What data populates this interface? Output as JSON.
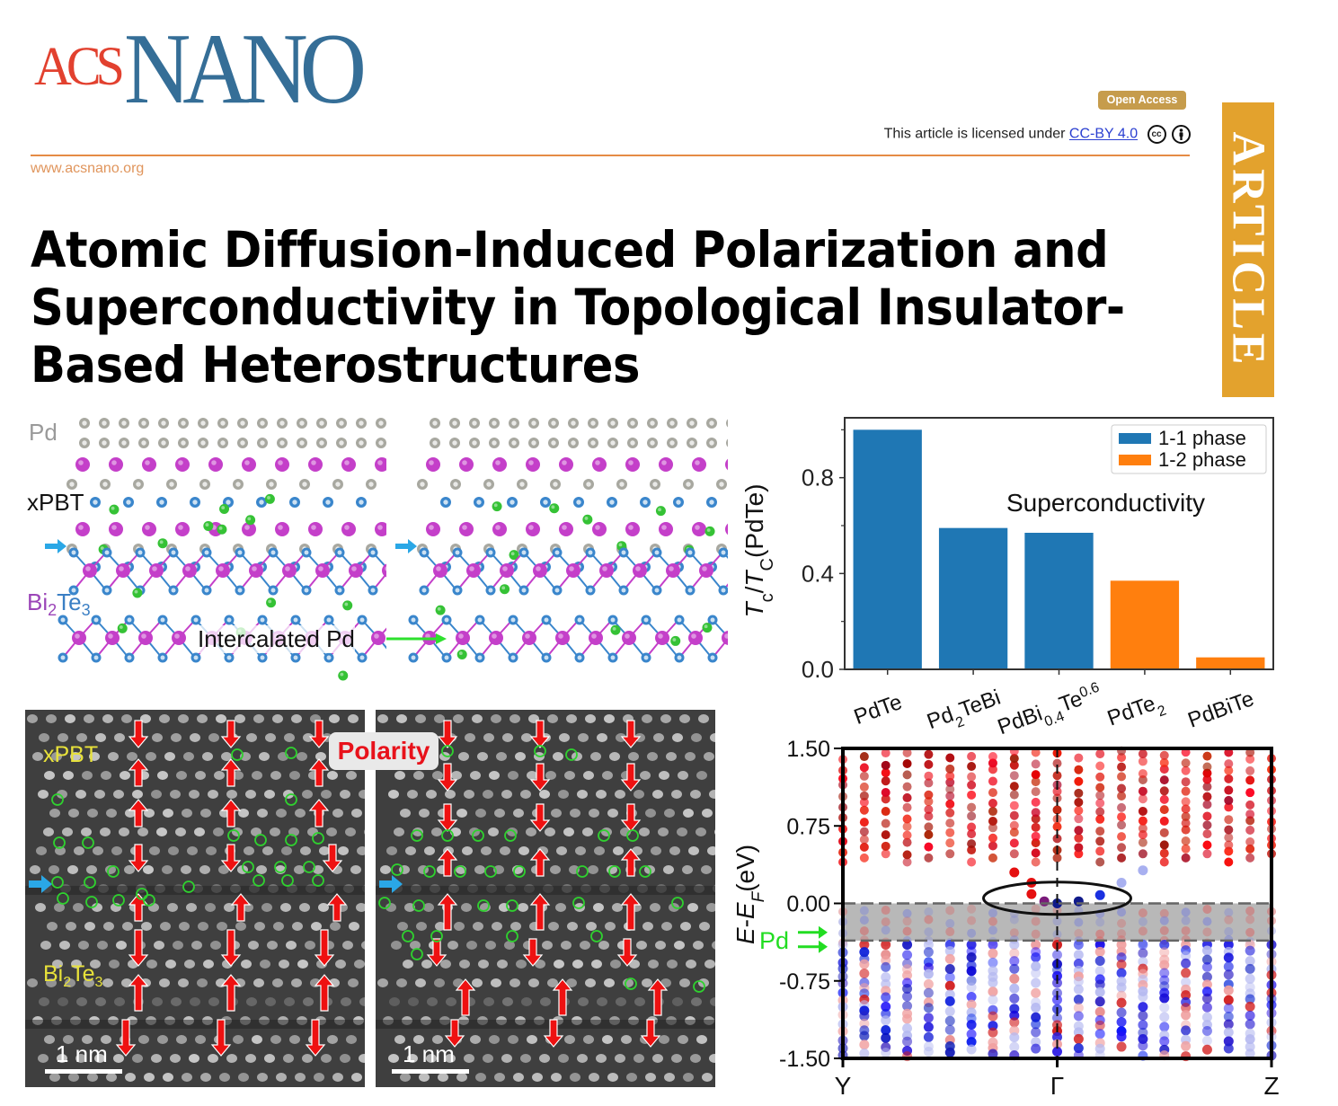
{
  "journal": {
    "logo_acs": "ACS",
    "logo_nano": "NANO",
    "website": "www.acsnano.org",
    "open_access_badge": "Open Access",
    "license_prefix": "This article is licensed under ",
    "license_link": "CC-BY 4.0",
    "icons": [
      "cc-icon",
      "by-person-icon"
    ],
    "section_tab": "ARTICLE",
    "colors": {
      "acs_red": "#e2412f",
      "nano_blue": "#356e97",
      "rule_orange": "#e58b45",
      "article_gold": "#e3a22d"
    }
  },
  "title_lines": [
    "Atomic Diffusion-Induced Polarization and",
    "Superconductivity in Topological Insulator-",
    "Based Heterostructures"
  ],
  "structure_panel": {
    "labels": {
      "pd": "Pd",
      "xpbt": "xPBT",
      "bi2te3_main": "Bi",
      "bi2te3_sub": "2",
      "bi2te3_te": "Te",
      "bi2te3_sub2": "3",
      "intercalated": "Intercalated Pd"
    },
    "atom_colors": {
      "pd": "#a8a8a0",
      "bi": "#c43fc9",
      "te": "#3a86cc",
      "intercalated_pd": "#35c235"
    }
  },
  "tem_panel": {
    "labels": {
      "xpbt": "xPBT",
      "bi": "Bi",
      "sub2": "2",
      "te": "Te",
      "sub3": "3"
    },
    "polarity_label": "Polarity",
    "scale_bar_left": "1 nm",
    "scale_bar_right": "1 nm"
  },
  "chart_data": [
    {
      "type": "bar",
      "title": "",
      "annotation": "Superconductivity",
      "categories": [
        "PdTe",
        "Pd2TeBi",
        "PdBi0.4Te0.6",
        "PdTe2",
        "PdBiTe"
      ],
      "category_labels": [
        {
          "base": "PdTe",
          "parts": [
            [
              "PdTe",
              ""
            ]
          ]
        },
        {
          "base": "Pd2TeBi",
          "parts": [
            [
              "Pd",
              ""
            ],
            [
              "2",
              "sub"
            ],
            [
              "TeBi",
              ""
            ]
          ]
        },
        {
          "base": "PdBi0.4Te0.6",
          "parts": [
            [
              "PdBi",
              ""
            ],
            [
              "0.4",
              "sub"
            ],
            [
              "Te",
              ""
            ],
            [
              "0.6",
              "sup"
            ]
          ]
        },
        {
          "base": "PdTe2",
          "parts": [
            [
              "PdTe",
              ""
            ],
            [
              "2",
              "sub"
            ]
          ]
        },
        {
          "base": "PdBiTe",
          "parts": [
            [
              "PdBiTe",
              ""
            ]
          ]
        }
      ],
      "values": [
        1.0,
        0.59,
        0.57,
        0.37,
        0.05
      ],
      "series_of_bar": [
        "1-1 phase",
        "1-1 phase",
        "1-1 phase",
        "1-2 phase",
        "1-2 phase"
      ],
      "legend": [
        {
          "name": "1-1 phase",
          "color": "#1f77b4"
        },
        {
          "name": "1-2 phase",
          "color": "#ff7f0e"
        }
      ],
      "legend_position": "top-right",
      "xlabel": "",
      "ylabel": "Tc/Tc(PdTe)",
      "ylabel_parts": {
        "t1": "T",
        "s1": "c",
        "slash": "/",
        "t2": "T",
        "s2": "C",
        "rest": "(PdTe)"
      },
      "yticks": [
        0.0,
        0.4,
        0.8
      ],
      "yticks_labels": [
        "0.0",
        "0.4",
        "0.8"
      ],
      "ylim": [
        0,
        1.05
      ],
      "grid": false
    },
    {
      "type": "scatter",
      "title": "",
      "description": "Projected band structure (fat bands) along Y–Γ–Z; red = conduction-dominated weights above EF, blue/red mixed below; shaded gray band between 0.00 and about -0.36 eV; ellipse around in-gap states at Γ near 0.05 eV",
      "xlabel": "",
      "ylabel": "E-EF (eV)",
      "ylabel_parts": {
        "e": "E",
        "dash": "-",
        "ef": "E",
        "sub": "F",
        "unit": "(eV)"
      },
      "xticks_labels": [
        "Y",
        "Γ",
        "Z"
      ],
      "yticks": [
        1.5,
        0.75,
        0.0,
        -0.75,
        -1.5
      ],
      "yticks_labels": [
        "1.50",
        "0.75",
        "0.00",
        "-0.75",
        "-1.50"
      ],
      "ylim": [
        -1.5,
        1.5
      ],
      "shaded_band": [
        -0.36,
        0.0
      ],
      "fermi_line": 0.0,
      "gamma_line": true,
      "annotation_pd": "Pd",
      "pd_arrows_energy": [
        -0.28,
        -0.42
      ],
      "ellipse": {
        "center_energy": 0.05,
        "description": "in-gap states near Γ"
      },
      "kpoint_columns": 21,
      "conduction_band_min": 0.4,
      "valence_band_max": -0.38,
      "highlighted_states": [
        {
          "k": 0.4,
          "e": 0.3,
          "color": "red"
        },
        {
          "k": 0.44,
          "e": 0.2,
          "color": "red"
        },
        {
          "k": 0.44,
          "e": 0.09,
          "color": "red"
        },
        {
          "k": 0.47,
          "e": 0.02,
          "color": "red-blue"
        },
        {
          "k": 0.5,
          "e": 0.0,
          "color": "navy"
        },
        {
          "k": 0.55,
          "e": 0.02,
          "color": "navy"
        },
        {
          "k": 0.6,
          "e": 0.08,
          "color": "blue"
        },
        {
          "k": 0.65,
          "e": 0.2,
          "color": "light-blue"
        },
        {
          "k": 0.7,
          "e": 0.32,
          "color": "light-blue"
        }
      ],
      "grid": false
    }
  ]
}
